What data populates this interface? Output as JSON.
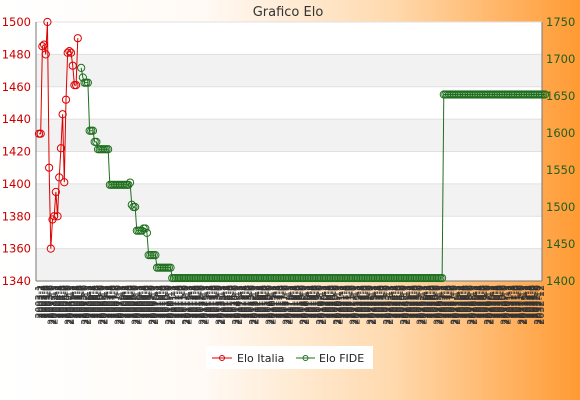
{
  "chart_data": {
    "type": "line",
    "title": "Grafico Elo",
    "x_tick_labels": [
      "2003-1",
      "2003-2",
      "2003-3",
      "2003-4",
      "2003-5",
      "2003-6",
      "2003-7",
      "2003-8",
      "2003-9",
      "2003-10",
      "2003-11",
      "2003-12",
      "2004-1",
      "2004-2",
      "2004-3",
      "2004-4",
      "2004-5",
      "2004-6",
      "2004-7",
      "2004-8",
      "2004-9",
      "2004-10",
      "2004-11",
      "2004-12",
      "2005-1",
      "2005-2",
      "2005-3",
      "2005-4",
      "2005-5",
      "2005-6",
      "2005-7",
      "2005-8",
      "2005-9",
      "2005-10",
      "2005-11",
      "2005-12",
      "2006-1",
      "2006-2",
      "2006-3",
      "2006-4",
      "2006-5",
      "2006-6",
      "2006-7",
      "2006-8",
      "2006-9",
      "2006-10",
      "2006-11",
      "2006-12",
      "2007-1",
      "2007-2",
      "2007-3",
      "2007-4",
      "2007-5",
      "2007-6",
      "2007-7",
      "2007-8",
      "2007-9",
      "2007-10",
      "2007-11",
      "2007-12",
      "2008-1",
      "2008-2",
      "2008-3",
      "2008-4",
      "2008-5",
      "2008-6",
      "2008-7",
      "2008-8",
      "2008-9",
      "2008-10",
      "2008-11",
      "2008-12",
      "2009-1",
      "2009-2",
      "2009-3",
      "2009-4",
      "2009-5",
      "2009-6",
      "2009-7",
      "2009-8",
      "2009-9",
      "2009-10",
      "2009-11",
      "2009-12",
      "2010-1",
      "2010-2",
      "2010-3",
      "2010-4",
      "2010-5",
      "2010-6",
      "2010-7",
      "2010-8",
      "2010-9",
      "2010-10",
      "2010-11",
      "2010-12",
      "2011-1",
      "2011-2",
      "2011-3",
      "2011-4",
      "2011-5",
      "2011-6",
      "2011-7",
      "2011-8",
      "2011-9",
      "2011-10",
      "2011-11",
      "2011-12",
      "2012-1",
      "2012-2",
      "2012-3",
      "2012-4",
      "2012-5",
      "2012-6",
      "2012-7",
      "2012-8",
      "2012-9",
      "2012-10",
      "2012-11",
      "2012-12",
      "2013-1",
      "2013-2",
      "2013-3",
      "2013-4",
      "2013-5",
      "2013-6",
      "2013-7",
      "2013-8",
      "2013-9",
      "2013-10",
      "2013-11",
      "2013-12",
      "2014-1",
      "2014-2",
      "2014-3",
      "2014-4",
      "2014-5",
      "2014-6",
      "2014-7",
      "2014-8",
      "2014-9",
      "2014-10",
      "2014-11",
      "2014-12",
      "2015-1",
      "2015-2",
      "2015-3",
      "2015-4",
      "2015-5",
      "2015-6",
      "2015-7",
      "2015-8",
      "2015-9",
      "2015-10",
      "2015-11",
      "2015-12",
      "2016-1",
      "2016-2",
      "2016-3",
      "2016-4",
      "2016-5",
      "2016-6",
      "2016-7",
      "2016-8",
      "2016-9",
      "2016-10",
      "2016-11",
      "2016-12",
      "2017-1",
      "2017-2",
      "2017-3",
      "2017-4",
      "2017-5",
      "2017-6",
      "2017-7",
      "2017-8",
      "2017-9",
      "2017-10",
      "2017-11",
      "2017-12",
      "2018-1",
      "2018-2",
      "2018-3",
      "2018-4",
      "2018-5",
      "2018-6",
      "2018-7",
      "2018-8",
      "2018-9",
      "2018-10",
      "2018-11",
      "2018-12",
      "2019-1",
      "2019-2",
      "2019-3",
      "2019-4",
      "2019-5",
      "2019-6",
      "2019-7",
      "2019-8",
      "2019-9",
      "2019-10",
      "2019-11",
      "2019-12",
      "2020-1",
      "2020-2",
      "2020-3",
      "2020-4",
      "2020-5",
      "2020-6",
      "2020-7",
      "2020-8",
      "2020-9",
      "2020-10",
      "2020-11",
      "2020-12",
      "2021-1",
      "2021-2",
      "2021-3",
      "2021-4",
      "2021-5",
      "2021-6",
      "2021-7",
      "2021-8",
      "2021-9",
      "2021-10",
      "2021-11",
      "2021-12",
      "2022-1",
      "2022-2",
      "2022-3",
      "2022-4",
      "2022-5",
      "2022-6",
      "2022-7",
      "2022-8",
      "2022-9",
      "2022-10",
      "2022-11",
      "2022-12",
      "2023-1",
      "2023-2",
      "2023-3",
      "2023-4",
      "2023-5",
      "2023-6",
      "2023-7",
      "2023-8",
      "2023-9",
      "2023-10",
      "2023-11",
      "2023-12",
      "2024-1",
      "2024-2",
      "2024-3",
      "2024-4",
      "2024-5",
      "2024-6",
      "2024-7",
      "2024-8",
      "2024-9",
      "2024-10",
      "2024-11",
      "2024-12",
      "2025-1",
      "2025-2",
      "2025-3",
      "2025-4",
      "2025-5",
      "2025-6",
      "2025-7",
      "2025-8",
      "2025-9",
      "2025-10",
      "2025-11",
      "2025-12",
      "2026-1",
      "2026-2",
      "2026-3",
      "2026-4",
      "2026-5",
      "2026-6",
      "2026-7",
      "2026-8",
      "2026-9",
      "2026-10",
      "2026-11",
      "2026-12",
      "2027-1",
      "2027-2",
      "2027-3",
      "2027-4",
      "2027-5",
      "2027-6",
      "2027-7",
      "2027-8",
      "2027-9",
      "2027-10",
      "2027-11",
      "2027-12",
      "2028-1",
      "2028-2",
      "2028-3",
      "2028-4",
      "2028-5",
      "2028-6",
      "2028-7",
      "2028-8",
      "2028-9",
      "2028-10",
      "2028-11",
      "2028-12",
      "2029-1",
      "2029-2",
      "2029-3",
      "2029-4",
      "2029-5",
      "2029-6",
      "2029-7",
      "2029-8",
      "2029-9",
      "2029-10",
      "2029-11",
      "2029-12",
      "2030-1",
      "2030-2",
      "2030-3",
      "2030-4",
      "2030-5",
      "2030-6",
      "2030-7",
      "2030-8",
      "2030-9",
      "2030-10",
      "2030-11",
      "2030-12",
      "2031-1",
      "2031-2",
      "2031-3",
      "2031-4",
      "2031-5",
      "2031-6",
      "2031-7",
      "2031-8",
      "2031-9",
      "2031-10",
      "2031-11",
      "2031-12",
      "2032-1",
      "2032-2",
      "2032-3",
      "2032-4",
      "2032-5",
      "2032-6",
      "2032-7",
      "2032-8",
      "2032-9",
      "2032-10",
      "2032-11",
      "2032-12"
    ],
    "y_left": {
      "label": "",
      "range": [
        1340,
        1500
      ],
      "ticks": [
        1340,
        1360,
        1380,
        1400,
        1420,
        1440,
        1460,
        1480,
        1500
      ],
      "color": "#cc0000"
    },
    "y_right": {
      "label": "",
      "range": [
        1400,
        1750
      ],
      "ticks": [
        1400,
        1450,
        1500,
        1550,
        1600,
        1650,
        1700,
        1750
      ],
      "color": "#1f5f1f"
    },
    "grid": true,
    "legend_position": "bottom-center",
    "series": [
      {
        "name": "Elo Italia",
        "axis": "left",
        "color": "#dd0000",
        "marker": "open-circle",
        "values": [
          1431,
          1431,
          1485,
          1486,
          1480,
          1500,
          1410,
          1360,
          1378,
          1380,
          1395,
          1380,
          1404,
          1422,
          1443,
          1401,
          1452,
          1481,
          1482,
          1481,
          1473,
          1461,
          1461,
          1490
        ]
      },
      {
        "name": "Elo FIDE",
        "axis": "right",
        "color": "#1f6f1f",
        "marker": "open-circle",
        "start_index": 23,
        "values": [
          1688,
          1675,
          1668,
          1668,
          1668,
          1603,
          1603,
          1603,
          1588,
          1588,
          1578,
          1578,
          1578,
          1578,
          1578,
          1578,
          1578,
          1530,
          1530,
          1530,
          1530,
          1530,
          1530,
          1530,
          1530,
          1530,
          1530,
          1530,
          1530,
          1533,
          1503,
          1500,
          1500,
          1468,
          1468,
          1468,
          1468,
          1471,
          1471,
          1465,
          1435,
          1435,
          1435,
          1435,
          1435,
          1418,
          1418,
          1418,
          1418,
          1418,
          1418,
          1418,
          1418,
          1418,
          1404,
          1404,
          1404,
          1404,
          1404,
          1404,
          1404,
          1404,
          1404,
          1404,
          1404,
          1404,
          1404,
          1404,
          1404,
          1404,
          1404,
          1404,
          1404,
          1404,
          1404,
          1404,
          1404,
          1404,
          1404,
          1404,
          1404,
          1404,
          1404,
          1404,
          1404,
          1404,
          1404,
          1404,
          1404,
          1404,
          1404,
          1404,
          1404,
          1404,
          1404,
          1404,
          1404,
          1404,
          1404,
          1404,
          1404,
          1404,
          1404,
          1404,
          1404,
          1404,
          1404,
          1404,
          1404,
          1404,
          1404,
          1404,
          1404,
          1404,
          1404,
          1404,
          1404,
          1404,
          1404,
          1404,
          1404,
          1404,
          1404,
          1404,
          1404,
          1404,
          1404,
          1404,
          1404,
          1404,
          1404,
          1404,
          1404,
          1404,
          1404,
          1404,
          1404,
          1404,
          1404,
          1404,
          1404,
          1404,
          1404,
          1404,
          1404,
          1404,
          1404,
          1404,
          1404,
          1404,
          1404,
          1404,
          1404,
          1404,
          1404,
          1404,
          1404,
          1404,
          1404,
          1404,
          1404,
          1404,
          1404,
          1404,
          1404,
          1404,
          1404,
          1404,
          1404,
          1404,
          1404,
          1404,
          1404,
          1404,
          1404,
          1404,
          1404,
          1404,
          1404,
          1404,
          1404,
          1404,
          1404,
          1404,
          1404,
          1404,
          1404,
          1404,
          1404,
          1404,
          1404,
          1404,
          1404,
          1404,
          1404,
          1404,
          1404,
          1404,
          1404,
          1404,
          1404,
          1404,
          1404,
          1404,
          1404,
          1404,
          1404,
          1404,
          1404,
          1404,
          1404,
          1404,
          1404,
          1404,
          1404,
          1652,
          1652,
          1652,
          1652,
          1652,
          1652,
          1652,
          1652,
          1652,
          1652,
          1652,
          1652,
          1652,
          1652,
          1652,
          1652,
          1652,
          1652,
          1652,
          1652,
          1652,
          1652,
          1652,
          1652,
          1652,
          1652,
          1652,
          1652,
          1652,
          1652,
          1652,
          1652,
          1652,
          1652,
          1652,
          1652,
          1652,
          1652,
          1652,
          1652,
          1652,
          1652,
          1652,
          1652,
          1652,
          1652,
          1652,
          1652,
          1652,
          1652,
          1652,
          1652,
          1652,
          1652,
          1652,
          1652,
          1652,
          1652,
          1652,
          1652,
          1652
        ]
      }
    ]
  }
}
